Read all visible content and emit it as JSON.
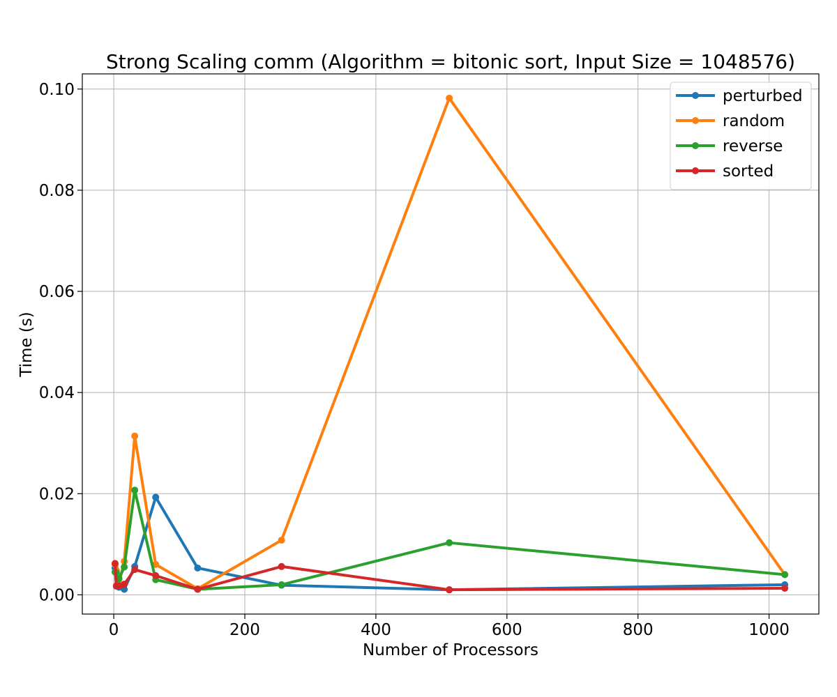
{
  "chart_data": {
    "type": "line",
    "title": "Strong Scaling comm (Algorithm = bitonic sort, Input Size = 1048576)",
    "xlabel": "Number of Processors",
    "ylabel": "Time (s)",
    "xlim": [
      -48,
      1076
    ],
    "ylim": [
      -0.0038,
      0.103
    ],
    "xticks": [
      0,
      200,
      400,
      600,
      800,
      1000
    ],
    "xtick_labels": [
      "0",
      "200",
      "400",
      "600",
      "800",
      "1000"
    ],
    "yticks": [
      0.0,
      0.02,
      0.04,
      0.06,
      0.08,
      0.1
    ],
    "ytick_labels": [
      "0.00",
      "0.02",
      "0.04",
      "0.06",
      "0.08",
      "0.10"
    ],
    "grid": true,
    "legend_position": "top-right",
    "x": [
      2,
      4,
      8,
      16,
      32,
      64,
      128,
      256,
      512,
      1024
    ],
    "series": [
      {
        "name": "perturbed",
        "color": "#1f77b4",
        "values": [
          0.0053,
          0.0017,
          0.0015,
          0.0011,
          0.0056,
          0.0193,
          0.0053,
          0.0019,
          0.001,
          0.002
        ]
      },
      {
        "name": "random",
        "color": "#ff7f0e",
        "values": [
          0.006,
          0.0048,
          0.0023,
          0.0066,
          0.0314,
          0.006,
          0.0012,
          0.0108,
          0.0982,
          0.004
        ]
      },
      {
        "name": "reverse",
        "color": "#2ca02c",
        "values": [
          0.0045,
          0.0044,
          0.0032,
          0.0055,
          0.0207,
          0.003,
          0.0011,
          0.002,
          0.0103,
          0.004
        ]
      },
      {
        "name": "sorted",
        "color": "#d62728",
        "values": [
          0.0062,
          0.0018,
          0.0018,
          0.0021,
          0.005,
          0.0038,
          0.0011,
          0.0056,
          0.001,
          0.0013
        ]
      }
    ]
  }
}
